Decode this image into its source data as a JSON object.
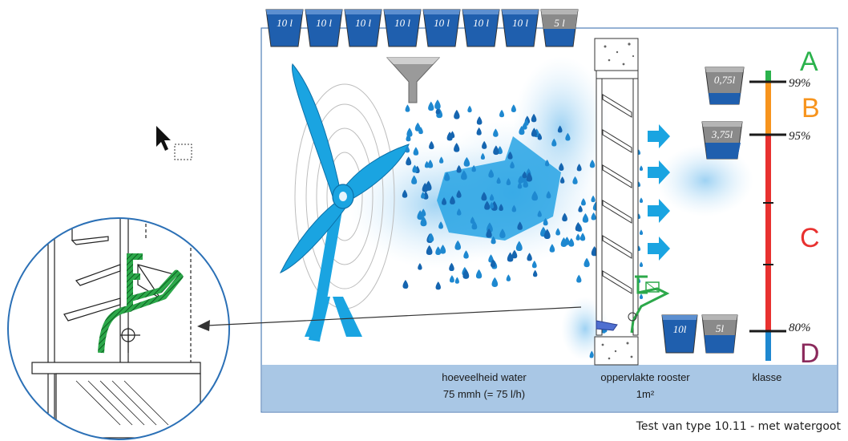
{
  "top_buckets": [
    "10 l",
    "10 l",
    "10 l",
    "10 l",
    "10 l",
    "10 l",
    "10 l",
    "5 l"
  ],
  "right_buckets": {
    "b1": "0,75l",
    "b2": "3,75l",
    "b3": "10l",
    "b4": "5l"
  },
  "percentages": {
    "p99": "99%",
    "p95": "95%",
    "p80": "80%"
  },
  "classes": {
    "A": {
      "letter": "A",
      "color": "#2bb24c"
    },
    "B": {
      "letter": "B",
      "color": "#f7941d"
    },
    "C": {
      "letter": "C",
      "color": "#e8312f"
    },
    "D": {
      "letter": "D",
      "color": "#8b2a5c"
    }
  },
  "footer": {
    "water_line1": "hoeveelheid water",
    "water_line2": "75 mmh (= 75 l/h)",
    "surface_line1": "oppervlakte rooster",
    "surface_line2": "1m²",
    "class_label": "klasse"
  },
  "caption": "Test van type 10.11 - met watergoot",
  "colors": {
    "panel_bg": "#ffffff",
    "panel_footer": "#a9c7e5",
    "water_blue": "#1e88d0",
    "bucket_blue": "#1f5fae",
    "bucket_grey": "#8a8a8a",
    "gutter_green": "#2ca84a"
  },
  "icons": [
    "fan-icon",
    "funnel-icon",
    "mouse-cursor-icon",
    "bucket-icon",
    "arrow-icon"
  ]
}
